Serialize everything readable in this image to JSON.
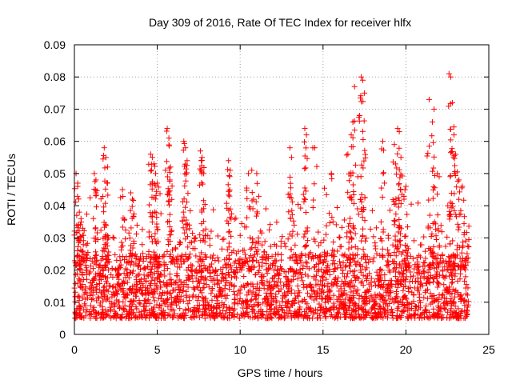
{
  "chart_data": {
    "type": "scatter",
    "title": "Day 309 of 2016, Rate Of TEC Index for receiver hlfx",
    "xlabel": "GPS time / hours",
    "ylabel": "ROTI / TECUs",
    "xlim": [
      0,
      25
    ],
    "ylim": [
      0,
      0.09
    ],
    "x_ticks": [
      0,
      5,
      10,
      15,
      20,
      25
    ],
    "x_tick_labels": [
      "0",
      "5",
      "10",
      "15",
      "20",
      "25"
    ],
    "y_ticks": [
      0,
      0.01,
      0.02,
      0.03,
      0.04,
      0.05,
      0.06,
      0.07,
      0.08,
      0.09
    ],
    "y_tick_labels": [
      "0",
      "0.01",
      "0.02",
      "0.03",
      "0.04",
      "0.05",
      "0.06",
      "0.07",
      "0.08",
      "0.09"
    ],
    "grid": true,
    "marker": "+",
    "marker_color": "#ff0000",
    "series": [
      {
        "name": "ROTI",
        "x": [
          0.1,
          0.2,
          0.3,
          0.4,
          0.5,
          1.2,
          1.3,
          1.8,
          1.9,
          2.0,
          2.9,
          3.4,
          3.5,
          4.6,
          4.7,
          4.8,
          4.9,
          5.0,
          5.6,
          5.7,
          5.8,
          6.6,
          6.7,
          6.8,
          7.6,
          7.7,
          7.8,
          9.3,
          9.4,
          10.5,
          10.7,
          11.0,
          13.0,
          13.1,
          13.9,
          14.0,
          14.5,
          15.5,
          16.5,
          16.7,
          16.8,
          16.9,
          17.2,
          17.3,
          17.4,
          17.5,
          18.6,
          19.3,
          19.5,
          19.6,
          19.7,
          20.0,
          21.4,
          21.6,
          21.7,
          21.9,
          22.6,
          22.7,
          22.8,
          22.9,
          23.0,
          23.2,
          23.4
        ],
        "y": [
          0.05,
          0.047,
          0.038,
          0.036,
          0.033,
          0.05,
          0.048,
          0.058,
          0.055,
          0.052,
          0.045,
          0.044,
          0.042,
          0.056,
          0.055,
          0.053,
          0.05,
          0.047,
          0.064,
          0.061,
          0.052,
          0.06,
          0.058,
          0.054,
          0.057,
          0.055,
          0.05,
          0.054,
          0.051,
          0.05,
          0.051,
          0.05,
          0.058,
          0.055,
          0.064,
          0.062,
          0.058,
          0.05,
          0.056,
          0.062,
          0.066,
          0.077,
          0.068,
          0.08,
          0.079,
          0.075,
          0.06,
          0.059,
          0.064,
          0.063,
          0.055,
          0.046,
          0.073,
          0.066,
          0.07,
          0.05,
          0.081,
          0.08,
          0.072,
          0.062,
          0.056,
          0.048,
          0.046
        ]
      }
    ],
    "background_band": {
      "x_range": [
        0,
        23.8
      ],
      "y_typical": [
        0.005,
        0.025
      ]
    }
  }
}
